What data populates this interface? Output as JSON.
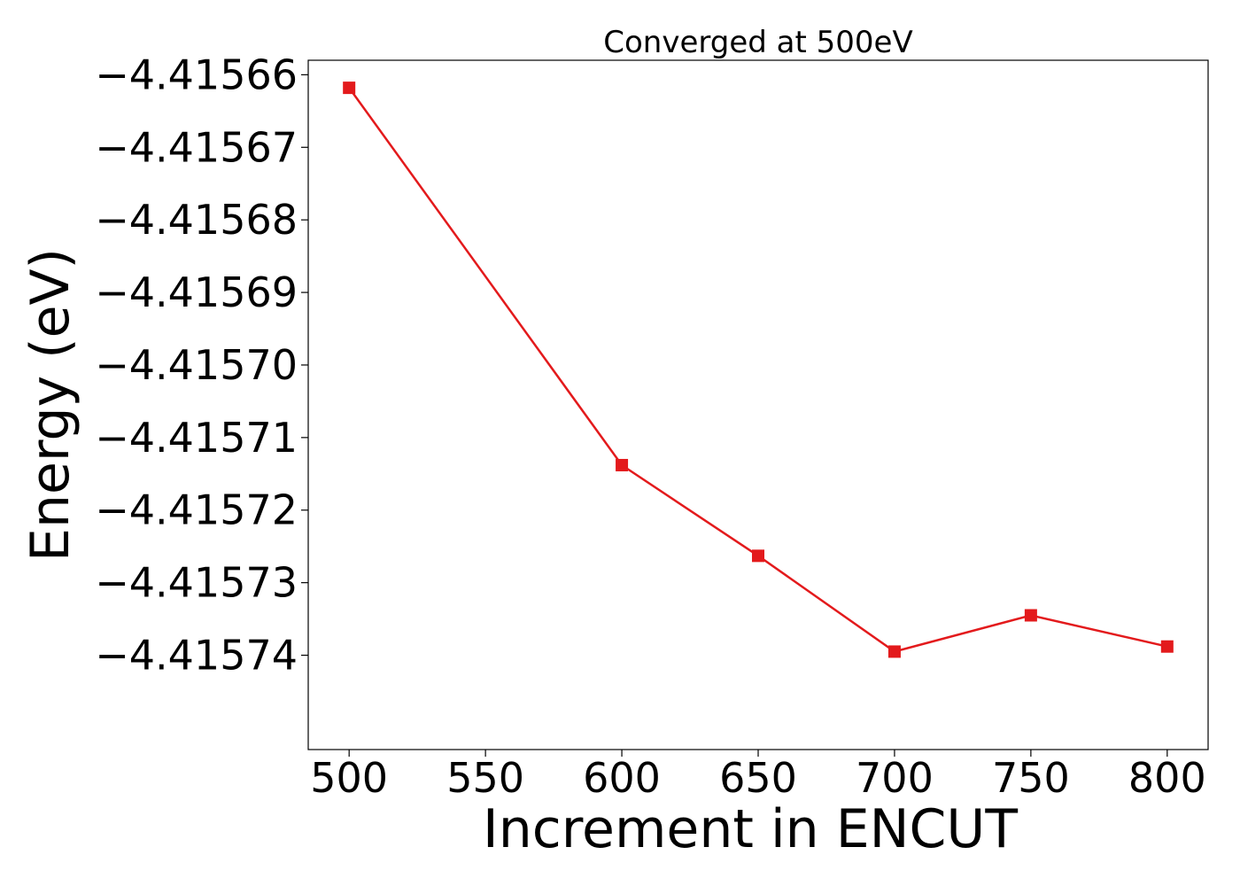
{
  "chart_data": {
    "type": "line",
    "title": "Converged at 500eV",
    "xlabel": "Increment in ENCUT",
    "ylabel": "Energy (eV)",
    "xlim": [
      485,
      815
    ],
    "ylim": [
      -4.415753,
      -4.415658
    ],
    "x_ticks": [
      500,
      550,
      600,
      650,
      700,
      750,
      800
    ],
    "x_tick_labels": [
      "500",
      "550",
      "600",
      "650",
      "700",
      "750",
      "800"
    ],
    "y_ticks": [
      -4.41566,
      -4.41567,
      -4.41568,
      -4.41569,
      -4.4157,
      -4.41571,
      -4.41572,
      -4.41573,
      -4.41574
    ],
    "y_tick_labels": [
      "−4.41566",
      "−4.41567",
      "−4.41568",
      "−4.41569",
      "−4.41570",
      "−4.41571",
      "−4.41572",
      "−4.41573",
      "−4.41574"
    ],
    "grid": false,
    "series": [
      {
        "color": "#e31a1c",
        "marker": "square",
        "x": [
          500,
          600,
          650,
          700,
          750,
          800
        ],
        "y": [
          -4.4156618,
          -4.4157138,
          -4.4157263,
          -4.4157395,
          -4.4157345,
          -4.4157388
        ]
      }
    ]
  }
}
